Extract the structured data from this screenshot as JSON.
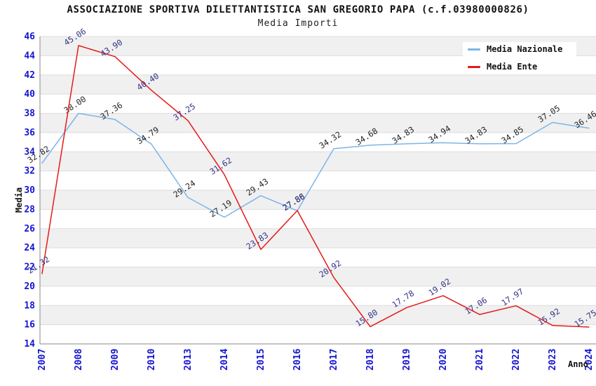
{
  "header": {
    "title": "ASSOCIAZIONE SPORTIVA DILETTANTISTICA SAN GREGORIO PAPA (c.f.03980000826)",
    "subtitle": "Media Importi"
  },
  "colors": {
    "tick_label": "#1414d2",
    "band": "#f0f0f0",
    "grid": "#dddddd",
    "axis": "#8a8a8a",
    "title_text": "#111111"
  },
  "chart_data": {
    "type": "line",
    "title": "ASSOCIAZIONE SPORTIVA DILETTANTISTICA SAN GREGORIO PAPA (c.f.03980000826)",
    "subtitle": "Media Importi",
    "xlabel": "Anno",
    "ylabel": "Media",
    "ylim": [
      14,
      46
    ],
    "ytick_step": 2,
    "grid": "horizontal-gridlines-with-alternating-bands",
    "legend_position": "top-right-inside",
    "categories": [
      "2007",
      "2008",
      "2009",
      "2010",
      "2013",
      "2014",
      "2015",
      "2016",
      "2017",
      "2018",
      "2019",
      "2020",
      "2021",
      "2022",
      "2023",
      "2024"
    ],
    "series": [
      {
        "name": "Media Nazionale",
        "color": "#7cb5e8",
        "label_color": "#262626",
        "values": [
          32.82,
          38.0,
          37.36,
          34.79,
          29.24,
          27.19,
          29.43,
          27.86,
          34.32,
          34.68,
          34.83,
          34.94,
          34.83,
          34.85,
          37.05,
          36.46
        ]
      },
      {
        "name": "Media Ente",
        "color": "#e51a1a",
        "label_color": "#333388",
        "values": [
          21.32,
          45.06,
          43.9,
          40.4,
          37.25,
          31.62,
          23.83,
          27.88,
          20.92,
          15.8,
          17.78,
          19.02,
          17.06,
          17.97,
          15.92,
          15.75
        ]
      }
    ]
  }
}
